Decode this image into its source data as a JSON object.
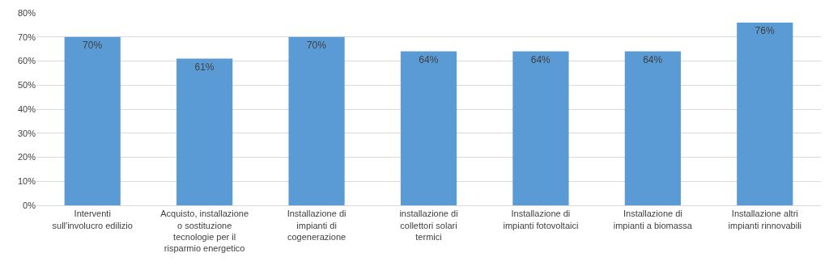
{
  "chart_data": {
    "type": "bar",
    "categories": [
      "Interventi sull'involucro edilizio",
      "Acquisto, installazione o sostituzione tecnologie per il risparmio energetico",
      "Installazione di impianti di cogenerazione",
      "installazione di collettori solari termici",
      "Installazione di impianti fotovoltaici",
      "Installazione di impianti a biomassa",
      "Installazione altri impianti rinnovabili"
    ],
    "values": [
      70,
      61,
      70,
      64,
      64,
      64,
      76
    ],
    "value_labels": [
      "70%",
      "61%",
      "70%",
      "64%",
      "64%",
      "64%",
      "76%"
    ],
    "color": "#5b9bd5",
    "ylim": [
      0,
      80
    ],
    "yticks": [
      {
        "value": 0,
        "label": "0%"
      },
      {
        "value": 10,
        "label": "10%"
      },
      {
        "value": 20,
        "label": "20%"
      },
      {
        "value": 30,
        "label": "30%"
      },
      {
        "value": 40,
        "label": "40%"
      },
      {
        "value": 50,
        "label": "50%"
      },
      {
        "value": 60,
        "label": "60%"
      },
      {
        "value": 70,
        "label": "70%"
      },
      {
        "value": 80,
        "label": "80%"
      }
    ],
    "grid": "y"
  }
}
